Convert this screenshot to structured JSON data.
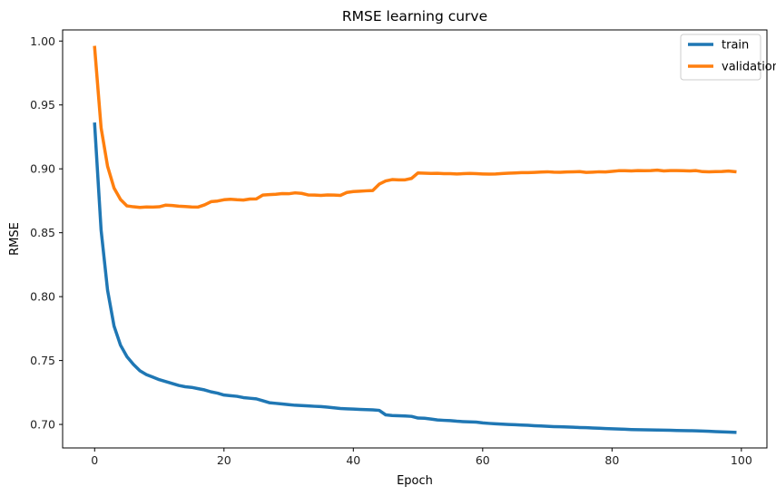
{
  "chart_data": {
    "type": "line",
    "title": "RMSE learning curve",
    "xlabel": "Epoch",
    "ylabel": "RMSE",
    "xlim": [
      -4.95,
      103.95
    ],
    "ylim": [
      0.6816,
      1.0087
    ],
    "xticks": [
      0,
      20,
      40,
      60,
      80,
      100
    ],
    "yticks": [
      0.7,
      0.75,
      0.8,
      0.85,
      0.9,
      0.95,
      1.0
    ],
    "grid": false,
    "legend_position": "top-right",
    "series": [
      {
        "name": "train",
        "color": "#1f77b4",
        "x": [
          0,
          1,
          2,
          3,
          4,
          5,
          6,
          7,
          8,
          9,
          10,
          11,
          12,
          13,
          14,
          15,
          16,
          17,
          18,
          19,
          20,
          21,
          22,
          23,
          24,
          25,
          26,
          27,
          28,
          29,
          30,
          31,
          32,
          33,
          34,
          35,
          36,
          37,
          38,
          39,
          40,
          41,
          42,
          43,
          44,
          45,
          46,
          47,
          48,
          49,
          50,
          51,
          52,
          53,
          54,
          55,
          56,
          57,
          58,
          59,
          60,
          61,
          62,
          63,
          64,
          65,
          66,
          67,
          68,
          69,
          70,
          71,
          72,
          73,
          74,
          75,
          76,
          77,
          78,
          79,
          80,
          81,
          82,
          83,
          84,
          85,
          86,
          87,
          88,
          89,
          90,
          91,
          92,
          93,
          94,
          95,
          96,
          97,
          98,
          99
        ],
        "y": [
          0.935,
          0.852,
          0.805,
          0.777,
          0.762,
          0.753,
          0.747,
          0.742,
          0.739,
          0.737,
          0.735,
          0.7335,
          0.732,
          0.7305,
          0.7295,
          0.729,
          0.728,
          0.727,
          0.7255,
          0.7245,
          0.723,
          0.7225,
          0.722,
          0.721,
          0.7205,
          0.72,
          0.7185,
          0.717,
          0.7165,
          0.716,
          0.7155,
          0.715,
          0.7148,
          0.7145,
          0.7142,
          0.714,
          0.7135,
          0.713,
          0.7125,
          0.7122,
          0.712,
          0.7118,
          0.7116,
          0.7114,
          0.711,
          0.7075,
          0.707,
          0.7068,
          0.7066,
          0.7063,
          0.705,
          0.7048,
          0.7042,
          0.7035,
          0.7032,
          0.703,
          0.7025,
          0.7022,
          0.702,
          0.7018,
          0.7012,
          0.7008,
          0.7005,
          0.7002,
          0.7,
          0.6998,
          0.6995,
          0.6993,
          0.699,
          0.6988,
          0.6985,
          0.6983,
          0.6982,
          0.698,
          0.6978,
          0.6976,
          0.6975,
          0.6972,
          0.697,
          0.6968,
          0.6966,
          0.6964,
          0.6962,
          0.696,
          0.6959,
          0.6958,
          0.6957,
          0.6956,
          0.6955,
          0.6954,
          0.6953,
          0.6952,
          0.6951,
          0.695,
          0.6948,
          0.6946,
          0.6944,
          0.6942,
          0.694,
          0.6938
        ]
      },
      {
        "name": "validation",
        "color": "#ff7f0e",
        "x": [
          0,
          1,
          2,
          3,
          4,
          5,
          6,
          7,
          8,
          9,
          10,
          11,
          12,
          13,
          14,
          15,
          16,
          17,
          18,
          19,
          20,
          21,
          22,
          23,
          24,
          25,
          26,
          27,
          28,
          29,
          30,
          31,
          32,
          33,
          34,
          35,
          36,
          37,
          38,
          39,
          40,
          41,
          42,
          43,
          44,
          45,
          46,
          47,
          48,
          49,
          50,
          51,
          52,
          53,
          54,
          55,
          56,
          57,
          58,
          59,
          60,
          61,
          62,
          63,
          64,
          65,
          66,
          67,
          68,
          69,
          70,
          71,
          72,
          73,
          74,
          75,
          76,
          77,
          78,
          79,
          80,
          81,
          82,
          83,
          84,
          85,
          86,
          87,
          88,
          89,
          90,
          91,
          92,
          93,
          94,
          95,
          96,
          97,
          98,
          99
        ],
        "y": [
          0.995,
          0.932,
          0.902,
          0.885,
          0.876,
          0.871,
          0.8703,
          0.8698,
          0.8702,
          0.8701,
          0.8703,
          0.8716,
          0.8713,
          0.8708,
          0.8705,
          0.8702,
          0.8701,
          0.8718,
          0.8743,
          0.8748,
          0.8758,
          0.8762,
          0.8758,
          0.8756,
          0.8764,
          0.8765,
          0.8795,
          0.8798,
          0.8801,
          0.8806,
          0.8805,
          0.8812,
          0.8808,
          0.8796,
          0.8795,
          0.8792,
          0.8796,
          0.8795,
          0.8792,
          0.8815,
          0.8822,
          0.8825,
          0.8828,
          0.883,
          0.888,
          0.8905,
          0.8916,
          0.8914,
          0.8914,
          0.8925,
          0.8968,
          0.8966,
          0.8964,
          0.8965,
          0.8962,
          0.8962,
          0.896,
          0.8962,
          0.8964,
          0.8962,
          0.896,
          0.8959,
          0.896,
          0.8963,
          0.8966,
          0.8968,
          0.897,
          0.897,
          0.8972,
          0.8975,
          0.8977,
          0.8974,
          0.8973,
          0.8976,
          0.8977,
          0.8978,
          0.8972,
          0.8974,
          0.8977,
          0.8976,
          0.898,
          0.8985,
          0.8985,
          0.8984,
          0.8986,
          0.8985,
          0.8986,
          0.899,
          0.8984,
          0.8986,
          0.8986,
          0.8985,
          0.8984,
          0.8986,
          0.8978,
          0.8977,
          0.8978,
          0.8979,
          0.8983,
          0.8978
        ]
      }
    ]
  }
}
